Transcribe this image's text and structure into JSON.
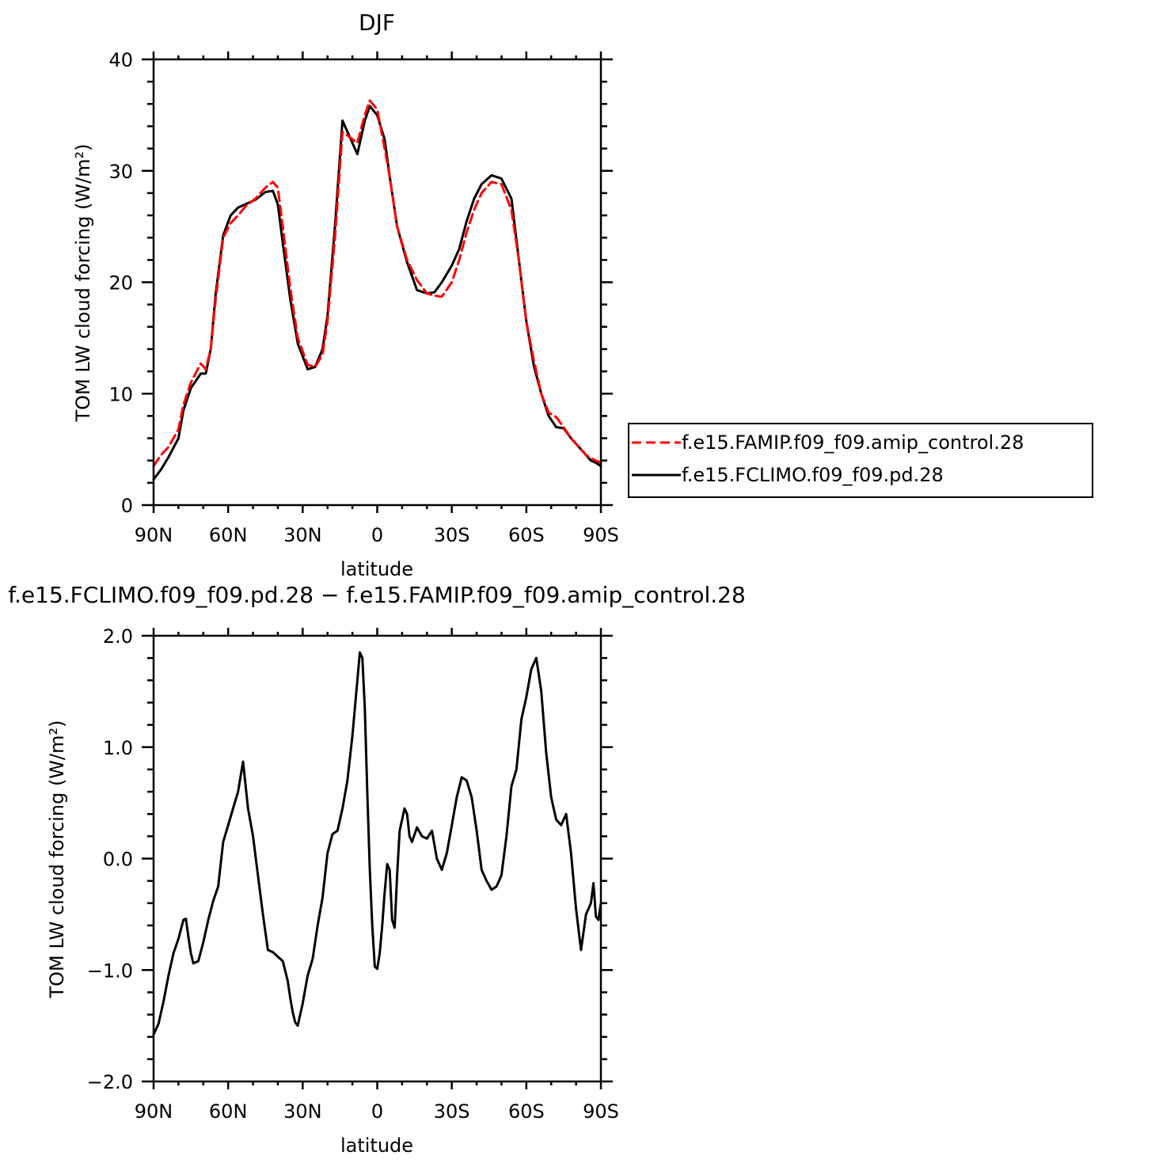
{
  "chart_data": [
    {
      "type": "line",
      "title": "DJF",
      "xlabel": "latitude",
      "ylabel": "TOM LW cloud forcing (W/m²)",
      "xlim": [
        90,
        -90
      ],
      "ylim": [
        0,
        40
      ],
      "x_ticks": [
        90,
        60,
        30,
        0,
        -30,
        -60,
        -90
      ],
      "x_tick_labels": [
        "90N",
        "60N",
        "30N",
        "0",
        "30S",
        "60S",
        "90S"
      ],
      "y_ticks": [
        0,
        10,
        20,
        30,
        40
      ],
      "y_tick_labels": [
        "0",
        "10",
        "20",
        "30",
        "40"
      ],
      "legend": {
        "position": "right"
      },
      "series": [
        {
          "name": "f.e15.FAMIP.f09_f09.amip_control.28",
          "color": "#ff0000",
          "dash": "dashed",
          "x": [
            90,
            87,
            84,
            80,
            78,
            75,
            71,
            69,
            67,
            65,
            62,
            59,
            56,
            53,
            49,
            45,
            42,
            40,
            38,
            35,
            32,
            28,
            25,
            22,
            20,
            17,
            14,
            11,
            8,
            5,
            3,
            0,
            -3,
            -5,
            -8,
            -12,
            -16,
            -20,
            -23,
            -26,
            -30,
            -33,
            -36,
            -39,
            -42,
            -46,
            -50,
            -54,
            -57,
            -60,
            -63,
            -66,
            -69,
            -72,
            -75,
            -78,
            -82,
            -84,
            -86,
            -88,
            -90
          ],
          "y": [
            3.5,
            4.5,
            5.2,
            6.8,
            9.0,
            11.0,
            12.7,
            12.2,
            14.0,
            18.5,
            24.0,
            25.3,
            26.0,
            26.8,
            27.5,
            28.5,
            29.0,
            28.5,
            25.0,
            19.5,
            15.0,
            12.6,
            12.4,
            13.5,
            16.5,
            24.0,
            33.5,
            33.0,
            32.5,
            35.0,
            36.3,
            35.5,
            32.0,
            29.5,
            25.0,
            22.0,
            20.2,
            19.0,
            18.8,
            18.7,
            20.0,
            22.0,
            24.5,
            26.5,
            28.0,
            29.0,
            28.8,
            26.5,
            22.0,
            16.5,
            13.0,
            10.0,
            8.3,
            7.9,
            7.0,
            6.0,
            5.0,
            4.5,
            4.2,
            4.0,
            3.8
          ]
        },
        {
          "name": "f.e15.FCLIMO.f09_f09.pd.28",
          "color": "#000000",
          "dash": "solid",
          "x": [
            90,
            87,
            84,
            80,
            78,
            75,
            71,
            69,
            67,
            65,
            62,
            59,
            56,
            53,
            49,
            45,
            42,
            40,
            38,
            35,
            32,
            28,
            25,
            22,
            20,
            17,
            14,
            11,
            8,
            5,
            3,
            0,
            -3,
            -5,
            -8,
            -12,
            -16,
            -20,
            -23,
            -26,
            -30,
            -33,
            -36,
            -39,
            -42,
            -46,
            -50,
            -54,
            -57,
            -60,
            -63,
            -66,
            -69,
            -72,
            -75,
            -78,
            -82,
            -84,
            -86,
            -88,
            -90
          ],
          "y": [
            2.3,
            3.2,
            4.3,
            6.0,
            8.5,
            10.5,
            11.8,
            11.8,
            14.0,
            19.0,
            24.2,
            26.0,
            26.7,
            27.0,
            27.4,
            28.1,
            28.2,
            27.0,
            23.5,
            18.5,
            14.5,
            12.2,
            12.4,
            14.0,
            17.0,
            25.0,
            34.5,
            33.0,
            31.5,
            34.5,
            35.8,
            35.0,
            32.8,
            29.5,
            25.0,
            21.8,
            19.3,
            19.0,
            19.1,
            20.0,
            21.5,
            23.0,
            25.5,
            27.5,
            28.8,
            29.6,
            29.3,
            27.5,
            22.0,
            16.5,
            12.5,
            10.0,
            8.0,
            7.0,
            6.9,
            6.0,
            5.0,
            4.5,
            4.0,
            3.8,
            3.5
          ]
        }
      ]
    },
    {
      "type": "line",
      "title": "f.e15.FCLIMO.f09_f09.pd.28 − f.e15.FAMIP.f09_f09.amip_control.28",
      "xlabel": "latitude",
      "ylabel": "TOM LW cloud forcing (W/m²)",
      "xlim": [
        90,
        -90
      ],
      "ylim": [
        -2.0,
        2.0
      ],
      "x_ticks": [
        90,
        60,
        30,
        0,
        -30,
        -60,
        -90
      ],
      "x_tick_labels": [
        "90N",
        "60N",
        "30N",
        "0",
        "30S",
        "60S",
        "90S"
      ],
      "y_ticks": [
        -2.0,
        -1.0,
        0.0,
        1.0,
        2.0
      ],
      "y_tick_labels": [
        "−2.0",
        "−1.0",
        "0.0",
        "1.0",
        "2.0"
      ],
      "series": [
        {
          "color": "#000000",
          "x": [
            90,
            88,
            86,
            84,
            82,
            80,
            78,
            77,
            76,
            75,
            74,
            72,
            70,
            68,
            66,
            64,
            62,
            60,
            58,
            56,
            54,
            52,
            50,
            48,
            46,
            44,
            42,
            40,
            38,
            36,
            35,
            34,
            33,
            32,
            31,
            30,
            28,
            26,
            24,
            22,
            20,
            18,
            16,
            14,
            12,
            10,
            8,
            7,
            6,
            5,
            4,
            3,
            2,
            1,
            0,
            -1,
            -2,
            -3,
            -4,
            -5,
            -6,
            -7,
            -8,
            -9,
            -10,
            -11,
            -12,
            -13,
            -14,
            -16,
            -18,
            -20,
            -22,
            -24,
            -26,
            -28,
            -30,
            -32,
            -34,
            -36,
            -38,
            -40,
            -42,
            -44,
            -46,
            -48,
            -50,
            -52,
            -54,
            -56,
            -58,
            -60,
            -62,
            -64,
            -66,
            -68,
            -70,
            -72,
            -74,
            -76,
            -78,
            -80,
            -82,
            -84,
            -86,
            -87,
            -88,
            -89,
            -90
          ],
          "y": [
            -1.58,
            -1.48,
            -1.28,
            -1.05,
            -0.85,
            -0.72,
            -0.55,
            -0.54,
            -0.7,
            -0.85,
            -0.94,
            -0.92,
            -0.75,
            -0.55,
            -0.38,
            -0.25,
            0.15,
            0.3,
            0.45,
            0.6,
            0.87,
            0.45,
            0.2,
            -0.15,
            -0.5,
            -0.82,
            -0.84,
            -0.88,
            -0.92,
            -1.1,
            -1.25,
            -1.38,
            -1.47,
            -1.5,
            -1.4,
            -1.3,
            -1.05,
            -0.9,
            -0.6,
            -0.35,
            0.05,
            0.22,
            0.25,
            0.45,
            0.7,
            1.1,
            1.6,
            1.85,
            1.8,
            1.35,
            0.6,
            -0.1,
            -0.6,
            -0.97,
            -0.99,
            -0.85,
            -0.6,
            -0.3,
            -0.05,
            -0.1,
            -0.55,
            -0.62,
            -0.15,
            0.25,
            0.35,
            0.45,
            0.4,
            0.2,
            0.15,
            0.28,
            0.2,
            0.18,
            0.25,
            0.0,
            -0.1,
            0.05,
            0.3,
            0.55,
            0.73,
            0.7,
            0.55,
            0.25,
            -0.1,
            -0.2,
            -0.28,
            -0.25,
            -0.15,
            0.2,
            0.65,
            0.8,
            1.25,
            1.45,
            1.7,
            1.8,
            1.5,
            0.95,
            0.55,
            0.35,
            0.3,
            0.4,
            0.05,
            -0.45,
            -0.82,
            -0.5,
            -0.4,
            -0.22,
            -0.52,
            -0.55,
            -0.4
          ]
        }
      ]
    }
  ]
}
